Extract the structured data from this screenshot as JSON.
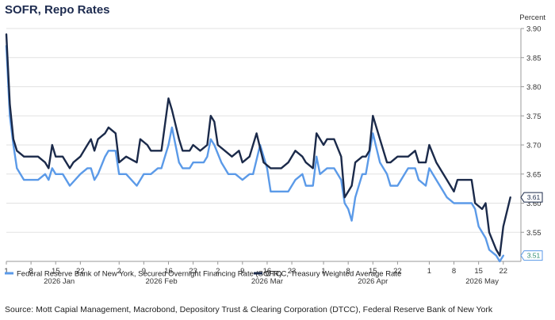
{
  "chart_data": {
    "type": "line",
    "title": "SOFR, Repo Rates",
    "ylabel": "Percent",
    "ylim": [
      3.5,
      3.9
    ],
    "yticks": [
      "3.55",
      "3.60",
      "3.65",
      "3.70",
      "3.75",
      "3.80",
      "3.85",
      "3.90"
    ],
    "grid": true,
    "legend_position": "bottom",
    "x_start": "2026-01-01",
    "x_end": "2026-05-27",
    "xtick_days": [
      {
        "label": "1",
        "date": "2026-01-01"
      },
      {
        "label": "8",
        "date": "2026-01-08"
      },
      {
        "label": "15",
        "date": "2026-01-15"
      },
      {
        "label": "22",
        "date": "2026-01-22"
      },
      {
        "label": "2",
        "date": "2026-02-02"
      },
      {
        "label": "9",
        "date": "2026-02-09"
      },
      {
        "label": "16",
        "date": "2026-02-16"
      },
      {
        "label": "23",
        "date": "2026-02-23"
      },
      {
        "label": "2",
        "date": "2026-03-02"
      },
      {
        "label": "9",
        "date": "2026-03-09"
      },
      {
        "label": "16",
        "date": "2026-03-16"
      },
      {
        "label": "23",
        "date": "2026-03-23"
      },
      {
        "label": "1",
        "date": "2026-04-01"
      },
      {
        "label": "8",
        "date": "2026-04-08"
      },
      {
        "label": "15",
        "date": "2026-04-15"
      },
      {
        "label": "22",
        "date": "2026-04-22"
      },
      {
        "label": "1",
        "date": "2026-05-01"
      },
      {
        "label": "8",
        "date": "2026-05-08"
      },
      {
        "label": "15",
        "date": "2026-05-15"
      },
      {
        "label": "22",
        "date": "2026-05-22"
      }
    ],
    "month_labels": [
      {
        "label": "2026 Jan",
        "date": "2026-01-16"
      },
      {
        "label": "2026 Feb",
        "date": "2026-02-14"
      },
      {
        "label": "2026 Mar",
        "date": "2026-03-16"
      },
      {
        "label": "2026 Apr",
        "date": "2026-04-15"
      },
      {
        "label": "2026 May",
        "date": "2026-05-16"
      }
    ],
    "series": [
      {
        "name": "Federal Reserve Bank of New York, Secured Overnight Financing Rate (SOFR)",
        "color": "#5b9ae8",
        "end_label": "3.51",
        "points": [
          [
            "2026-01-01",
            3.87
          ],
          [
            "2026-01-02",
            3.75
          ],
          [
            "2026-01-03",
            3.7
          ],
          [
            "2026-01-04",
            3.66
          ],
          [
            "2026-01-06",
            3.64
          ],
          [
            "2026-01-09",
            3.64
          ],
          [
            "2026-01-10",
            3.64
          ],
          [
            "2026-01-12",
            3.65
          ],
          [
            "2026-01-13",
            3.64
          ],
          [
            "2026-01-14",
            3.66
          ],
          [
            "2026-01-15",
            3.65
          ],
          [
            "2026-01-17",
            3.65
          ],
          [
            "2026-01-19",
            3.63
          ],
          [
            "2026-01-22",
            3.65
          ],
          [
            "2026-01-24",
            3.66
          ],
          [
            "2026-01-25",
            3.66
          ],
          [
            "2026-01-26",
            3.64
          ],
          [
            "2026-01-27",
            3.65
          ],
          [
            "2026-01-29",
            3.68
          ],
          [
            "2026-01-30",
            3.69
          ],
          [
            "2026-02-01",
            3.69
          ],
          [
            "2026-02-02",
            3.65
          ],
          [
            "2026-02-04",
            3.65
          ],
          [
            "2026-02-07",
            3.63
          ],
          [
            "2026-02-09",
            3.65
          ],
          [
            "2026-02-11",
            3.65
          ],
          [
            "2026-02-13",
            3.66
          ],
          [
            "2026-02-14",
            3.66
          ],
          [
            "2026-02-16",
            3.7
          ],
          [
            "2026-02-17",
            3.73
          ],
          [
            "2026-02-19",
            3.67
          ],
          [
            "2026-02-20",
            3.66
          ],
          [
            "2026-02-22",
            3.66
          ],
          [
            "2026-02-23",
            3.67
          ],
          [
            "2026-02-26",
            3.67
          ],
          [
            "2026-02-27",
            3.68
          ],
          [
            "2026-02-28",
            3.71
          ],
          [
            "2026-03-01",
            3.7
          ],
          [
            "2026-03-03",
            3.67
          ],
          [
            "2026-03-05",
            3.65
          ],
          [
            "2026-03-07",
            3.65
          ],
          [
            "2026-03-09",
            3.64
          ],
          [
            "2026-03-11",
            3.65
          ],
          [
            "2026-03-12",
            3.65
          ],
          [
            "2026-03-14",
            3.7
          ],
          [
            "2026-03-16",
            3.66
          ],
          [
            "2026-03-17",
            3.62
          ],
          [
            "2026-03-19",
            3.62
          ],
          [
            "2026-03-22",
            3.62
          ],
          [
            "2026-03-24",
            3.64
          ],
          [
            "2026-03-26",
            3.65
          ],
          [
            "2026-03-27",
            3.63
          ],
          [
            "2026-03-29",
            3.63
          ],
          [
            "2026-03-30",
            3.68
          ],
          [
            "2026-03-31",
            3.65
          ],
          [
            "2026-04-02",
            3.66
          ],
          [
            "2026-04-04",
            3.66
          ],
          [
            "2026-04-06",
            3.64
          ],
          [
            "2026-04-07",
            3.6
          ],
          [
            "2026-04-08",
            3.59
          ],
          [
            "2026-04-09",
            3.57
          ],
          [
            "2026-04-10",
            3.61
          ],
          [
            "2026-04-12",
            3.65
          ],
          [
            "2026-04-13",
            3.65
          ],
          [
            "2026-04-15",
            3.72
          ],
          [
            "2026-04-17",
            3.67
          ],
          [
            "2026-04-19",
            3.65
          ],
          [
            "2026-04-20",
            3.63
          ],
          [
            "2026-04-22",
            3.63
          ],
          [
            "2026-04-24",
            3.65
          ],
          [
            "2026-04-25",
            3.66
          ],
          [
            "2026-04-27",
            3.66
          ],
          [
            "2026-04-28",
            3.64
          ],
          [
            "2026-04-30",
            3.63
          ],
          [
            "2026-05-01",
            3.66
          ],
          [
            "2026-05-03",
            3.64
          ],
          [
            "2026-05-05",
            3.62
          ],
          [
            "2026-05-06",
            3.61
          ],
          [
            "2026-05-08",
            3.6
          ],
          [
            "2026-05-11",
            3.6
          ],
          [
            "2026-05-13",
            3.6
          ],
          [
            "2026-05-14",
            3.59
          ],
          [
            "2026-05-15",
            3.56
          ],
          [
            "2026-05-17",
            3.54
          ],
          [
            "2026-05-18",
            3.52
          ],
          [
            "2026-05-20",
            3.51
          ],
          [
            "2026-05-21",
            3.5
          ],
          [
            "2026-05-22",
            3.51
          ]
        ]
      },
      {
        "name": "DTCC, Treasury Weighted Average Rate",
        "color": "#1b2a4a",
        "end_label": "3.61",
        "points": [
          [
            "2026-01-01",
            3.89
          ],
          [
            "2026-01-02",
            3.77
          ],
          [
            "2026-01-03",
            3.71
          ],
          [
            "2026-01-04",
            3.69
          ],
          [
            "2026-01-06",
            3.68
          ],
          [
            "2026-01-09",
            3.68
          ],
          [
            "2026-01-10",
            3.68
          ],
          [
            "2026-01-12",
            3.67
          ],
          [
            "2026-01-13",
            3.66
          ],
          [
            "2026-01-14",
            3.7
          ],
          [
            "2026-01-15",
            3.68
          ],
          [
            "2026-01-17",
            3.68
          ],
          [
            "2026-01-19",
            3.66
          ],
          [
            "2026-01-20",
            3.67
          ],
          [
            "2026-01-22",
            3.68
          ],
          [
            "2026-01-24",
            3.7
          ],
          [
            "2026-01-25",
            3.71
          ],
          [
            "2026-01-26",
            3.69
          ],
          [
            "2026-01-27",
            3.71
          ],
          [
            "2026-01-29",
            3.72
          ],
          [
            "2026-01-30",
            3.73
          ],
          [
            "2026-02-01",
            3.72
          ],
          [
            "2026-02-02",
            3.67
          ],
          [
            "2026-02-04",
            3.68
          ],
          [
            "2026-02-07",
            3.67
          ],
          [
            "2026-02-08",
            3.71
          ],
          [
            "2026-02-10",
            3.7
          ],
          [
            "2026-02-11",
            3.69
          ],
          [
            "2026-02-13",
            3.69
          ],
          [
            "2026-02-14",
            3.69
          ],
          [
            "2026-02-16",
            3.78
          ],
          [
            "2026-02-17",
            3.76
          ],
          [
            "2026-02-19",
            3.71
          ],
          [
            "2026-02-20",
            3.69
          ],
          [
            "2026-02-22",
            3.69
          ],
          [
            "2026-02-23",
            3.7
          ],
          [
            "2026-02-25",
            3.69
          ],
          [
            "2026-02-27",
            3.7
          ],
          [
            "2026-02-28",
            3.75
          ],
          [
            "2026-03-01",
            3.74
          ],
          [
            "2026-03-02",
            3.7
          ],
          [
            "2026-03-04",
            3.69
          ],
          [
            "2026-03-06",
            3.68
          ],
          [
            "2026-03-08",
            3.69
          ],
          [
            "2026-03-09",
            3.67
          ],
          [
            "2026-03-11",
            3.68
          ],
          [
            "2026-03-13",
            3.72
          ],
          [
            "2026-03-15",
            3.67
          ],
          [
            "2026-03-17",
            3.66
          ],
          [
            "2026-03-19",
            3.66
          ],
          [
            "2026-03-20",
            3.66
          ],
          [
            "2026-03-22",
            3.67
          ],
          [
            "2026-03-24",
            3.69
          ],
          [
            "2026-03-26",
            3.68
          ],
          [
            "2026-03-27",
            3.67
          ],
          [
            "2026-03-29",
            3.66
          ],
          [
            "2026-03-30",
            3.72
          ],
          [
            "2026-04-01",
            3.7
          ],
          [
            "2026-04-02",
            3.71
          ],
          [
            "2026-04-04",
            3.71
          ],
          [
            "2026-04-06",
            3.68
          ],
          [
            "2026-04-07",
            3.61
          ],
          [
            "2026-04-09",
            3.63
          ],
          [
            "2026-04-10",
            3.67
          ],
          [
            "2026-04-12",
            3.68
          ],
          [
            "2026-04-13",
            3.68
          ],
          [
            "2026-04-14",
            3.69
          ],
          [
            "2026-04-15",
            3.75
          ],
          [
            "2026-04-17",
            3.71
          ],
          [
            "2026-04-19",
            3.67
          ],
          [
            "2026-04-20",
            3.67
          ],
          [
            "2026-04-22",
            3.68
          ],
          [
            "2026-04-24",
            3.68
          ],
          [
            "2026-04-25",
            3.68
          ],
          [
            "2026-04-27",
            3.69
          ],
          [
            "2026-04-28",
            3.67
          ],
          [
            "2026-04-30",
            3.67
          ],
          [
            "2026-05-01",
            3.7
          ],
          [
            "2026-05-03",
            3.67
          ],
          [
            "2026-05-05",
            3.65
          ],
          [
            "2026-05-06",
            3.64
          ],
          [
            "2026-05-08",
            3.62
          ],
          [
            "2026-05-09",
            3.64
          ],
          [
            "2026-05-11",
            3.64
          ],
          [
            "2026-05-12",
            3.64
          ],
          [
            "2026-05-13",
            3.64
          ],
          [
            "2026-05-14",
            3.6
          ],
          [
            "2026-05-16",
            3.59
          ],
          [
            "2026-05-17",
            3.6
          ],
          [
            "2026-05-18",
            3.55
          ],
          [
            "2026-05-20",
            3.52
          ],
          [
            "2026-05-21",
            3.51
          ],
          [
            "2026-05-22",
            3.56
          ],
          [
            "2026-05-24",
            3.61
          ]
        ]
      }
    ]
  },
  "source_text": "Source: Mott Capial Management, Macrobond, Depository Trust & Clearing Corporation (DTCC), Federal Reserve Bank of New York"
}
